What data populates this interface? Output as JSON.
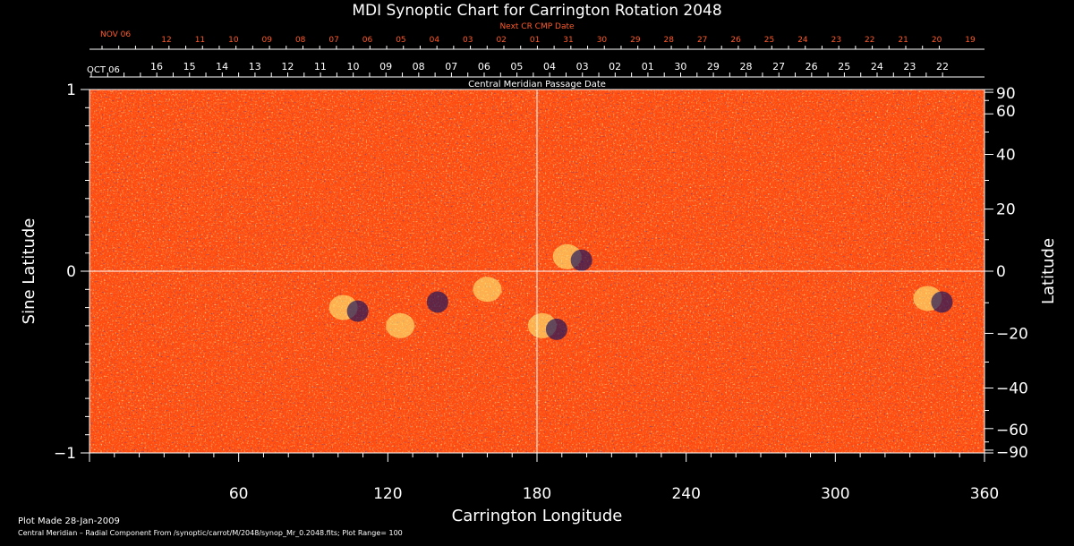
{
  "chart_data": {
    "type": "heatmap",
    "title": "MDI Synoptic Chart for Carrington Rotation 2048",
    "xlabel": "Carrington Longitude",
    "ylabel_left": "Sine Latitude",
    "ylabel_right": "Latitude",
    "xlim": [
      0,
      360
    ],
    "ylim": [
      -1,
      1
    ],
    "x_ticks": [
      60,
      120,
      180,
      240,
      300,
      360
    ],
    "y_ticks_left": [
      -1,
      0,
      1
    ],
    "y_ticks_left_labels": [
      "−1",
      "0",
      "1"
    ],
    "y_ticks_right": [
      90,
      60,
      40,
      20,
      0,
      -20,
      -40,
      -60,
      -90
    ],
    "y_ticks_right_labels": [
      "90",
      "60",
      "40",
      "20",
      "0",
      "−20",
      "−40",
      "−60",
      "−90"
    ],
    "reference_lines": {
      "longitude": 180,
      "sine_latitude": 0
    },
    "colors": {
      "background": "#000000",
      "field": "#ff4a10",
      "positive": "#ffff80",
      "negative": "#101060"
    },
    "top_axis_next": {
      "title": "Next CR CMP Date",
      "month_label": "NOV 06",
      "day_labels": [
        "12",
        "11",
        "10",
        "09",
        "08",
        "07",
        "06",
        "05",
        "04",
        "03",
        "02",
        "01",
        "31",
        "30",
        "29",
        "28",
        "27",
        "26",
        "25",
        "24",
        "23",
        "22",
        "21",
        "20",
        "19"
      ]
    },
    "top_axis_current": {
      "title": "Central Meridian Passage Date",
      "month_label": "OCT 06",
      "day_labels": [
        "16",
        "15",
        "14",
        "13",
        "12",
        "11",
        "10",
        "09",
        "08",
        "07",
        "06",
        "05",
        "04",
        "03",
        "02",
        "01",
        "30",
        "29",
        "28",
        "27",
        "26",
        "25",
        "24",
        "23",
        "22"
      ]
    },
    "active_regions": [
      {
        "lon": 105,
        "slat": -0.2,
        "polarity": "mixed"
      },
      {
        "lon": 125,
        "slat": -0.3,
        "polarity": "positive"
      },
      {
        "lon": 140,
        "slat": -0.15,
        "polarity": "negative"
      },
      {
        "lon": 160,
        "slat": -0.1,
        "polarity": "positive"
      },
      {
        "lon": 185,
        "slat": -0.3,
        "polarity": "mixed"
      },
      {
        "lon": 195,
        "slat": 0.08,
        "polarity": "mixed"
      },
      {
        "lon": 340,
        "slat": -0.15,
        "polarity": "mixed"
      }
    ]
  },
  "footer": {
    "plot_made": "Plot Made 28-Jan-2009",
    "description": "Central Meridian – Radial Component From /synoptic/carrot/M/2048/synop_Mr_0.2048.fits; Plot Range=  100"
  }
}
